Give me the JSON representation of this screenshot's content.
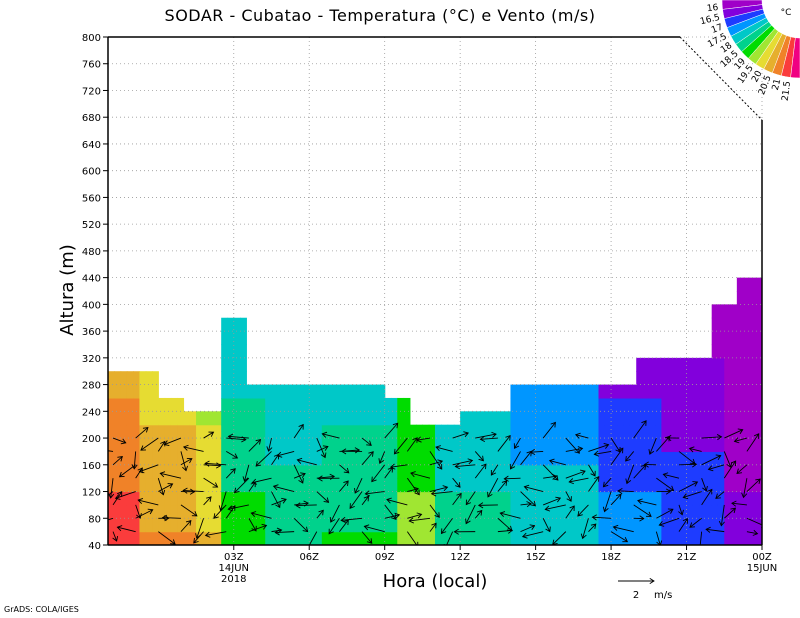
{
  "chart_data": {
    "type": "heatmap",
    "title": "SODAR - Cubatao - Temperatura (°C) e Vento (m/s)",
    "xlabel": "Hora (local)",
    "ylabel": "Altura (m)",
    "credit": "GrADS: COLA/IGES",
    "ylim": [
      40,
      800
    ],
    "y_ticks": [
      40,
      80,
      120,
      160,
      200,
      240,
      280,
      320,
      360,
      400,
      440,
      480,
      520,
      560,
      600,
      640,
      680,
      720,
      760,
      800
    ],
    "xlim_hours": [
      -2,
      24
    ],
    "x_ticks": [
      {
        "hour": 3,
        "label": "03Z",
        "sub1": "14JUN",
        "sub2": "2018"
      },
      {
        "hour": 6,
        "label": "06Z",
        "sub1": "",
        "sub2": ""
      },
      {
        "hour": 9,
        "label": "09Z",
        "sub1": "",
        "sub2": ""
      },
      {
        "hour": 12,
        "label": "12Z",
        "sub1": "",
        "sub2": ""
      },
      {
        "hour": 15,
        "label": "15Z",
        "sub1": "",
        "sub2": ""
      },
      {
        "hour": 18,
        "label": "18Z",
        "sub1": "",
        "sub2": ""
      },
      {
        "hour": 21,
        "label": "21Z",
        "sub1": "",
        "sub2": ""
      },
      {
        "hour": 24,
        "label": "00Z",
        "sub1": "15JUN",
        "sub2": ""
      }
    ],
    "grid": true,
    "colorbar": {
      "unit": "°C",
      "labels": [
        "16",
        "16.5",
        "17",
        "17.5",
        "18",
        "18.5",
        "19",
        "19.5",
        "20",
        "20.5",
        "21",
        "21.5"
      ],
      "colors": [
        "#a000c8",
        "#8200dc",
        "#1e3cff",
        "#0096ff",
        "#00c8c8",
        "#00d28c",
        "#00dc00",
        "#a0e632",
        "#e6dc32",
        "#e6af2d",
        "#f08228",
        "#fa3c3c",
        "#f00082"
      ],
      "placement": "top-right"
    },
    "wind_reference": {
      "value": "2",
      "unit": "m/s"
    },
    "profile_top_m": [
      {
        "from": -2.0,
        "to": -0.1,
        "top": 300
      },
      {
        "from": -0.1,
        "to": 0.9,
        "top": 260
      },
      {
        "from": 0.9,
        "to": 2.4,
        "top": 240
      },
      {
        "from": 2.4,
        "to": 3.4,
        "top": 380
      },
      {
        "from": 3.4,
        "to": 8.9,
        "top": 280
      },
      {
        "from": 8.9,
        "to": 9.9,
        "top": 260
      },
      {
        "from": 9.9,
        "to": 10.9,
        "top": 220
      },
      {
        "from": 10.9,
        "to": 11.9,
        "top": 220
      },
      {
        "from": 11.9,
        "to": 12.9,
        "top": 240
      },
      {
        "from": 12.9,
        "to": 13.9,
        "top": 240
      },
      {
        "from": 13.9,
        "to": 14.9,
        "top": 280
      },
      {
        "from": 14.9,
        "to": 18.9,
        "top": 280
      },
      {
        "from": 18.9,
        "to": 20.9,
        "top": 320
      },
      {
        "from": 20.9,
        "to": 21.9,
        "top": 320
      },
      {
        "from": 21.9,
        "to": 22.9,
        "top": 400
      },
      {
        "from": 22.9,
        "to": 24.0,
        "top": 440
      }
    ],
    "temperature_bands": [
      {
        "from": -2.0,
        "to": -0.8,
        "temp": 21.3
      },
      {
        "from": -0.8,
        "to": 1.5,
        "temp": 20.6
      },
      {
        "from": 1.5,
        "to": 2.4,
        "temp": 20.1
      },
      {
        "from": 2.4,
        "to": 4.2,
        "temp": 18.8
      },
      {
        "from": 4.2,
        "to": 6.5,
        "temp": 18.4
      },
      {
        "from": 6.5,
        "to": 9.5,
        "temp": 18.6
      },
      {
        "from": 9.5,
        "to": 11.0,
        "temp": 19.3
      },
      {
        "from": 11.0,
        "to": 14.0,
        "temp": 18.3
      },
      {
        "from": 14.0,
        "to": 17.5,
        "temp": 17.9
      },
      {
        "from": 17.5,
        "to": 20.0,
        "temp": 17.3
      },
      {
        "from": 20.0,
        "to": 22.5,
        "temp": 17.0
      },
      {
        "from": 22.5,
        "to": 24.0,
        "temp": 16.3
      }
    ],
    "wind_arrows": {
      "heights_m": [
        60,
        80,
        100,
        120,
        140,
        160,
        180,
        200
      ],
      "start_hour": -1.8,
      "step_hours": 0.9,
      "count": 29,
      "mean_speed_ms": 1.4
    }
  }
}
